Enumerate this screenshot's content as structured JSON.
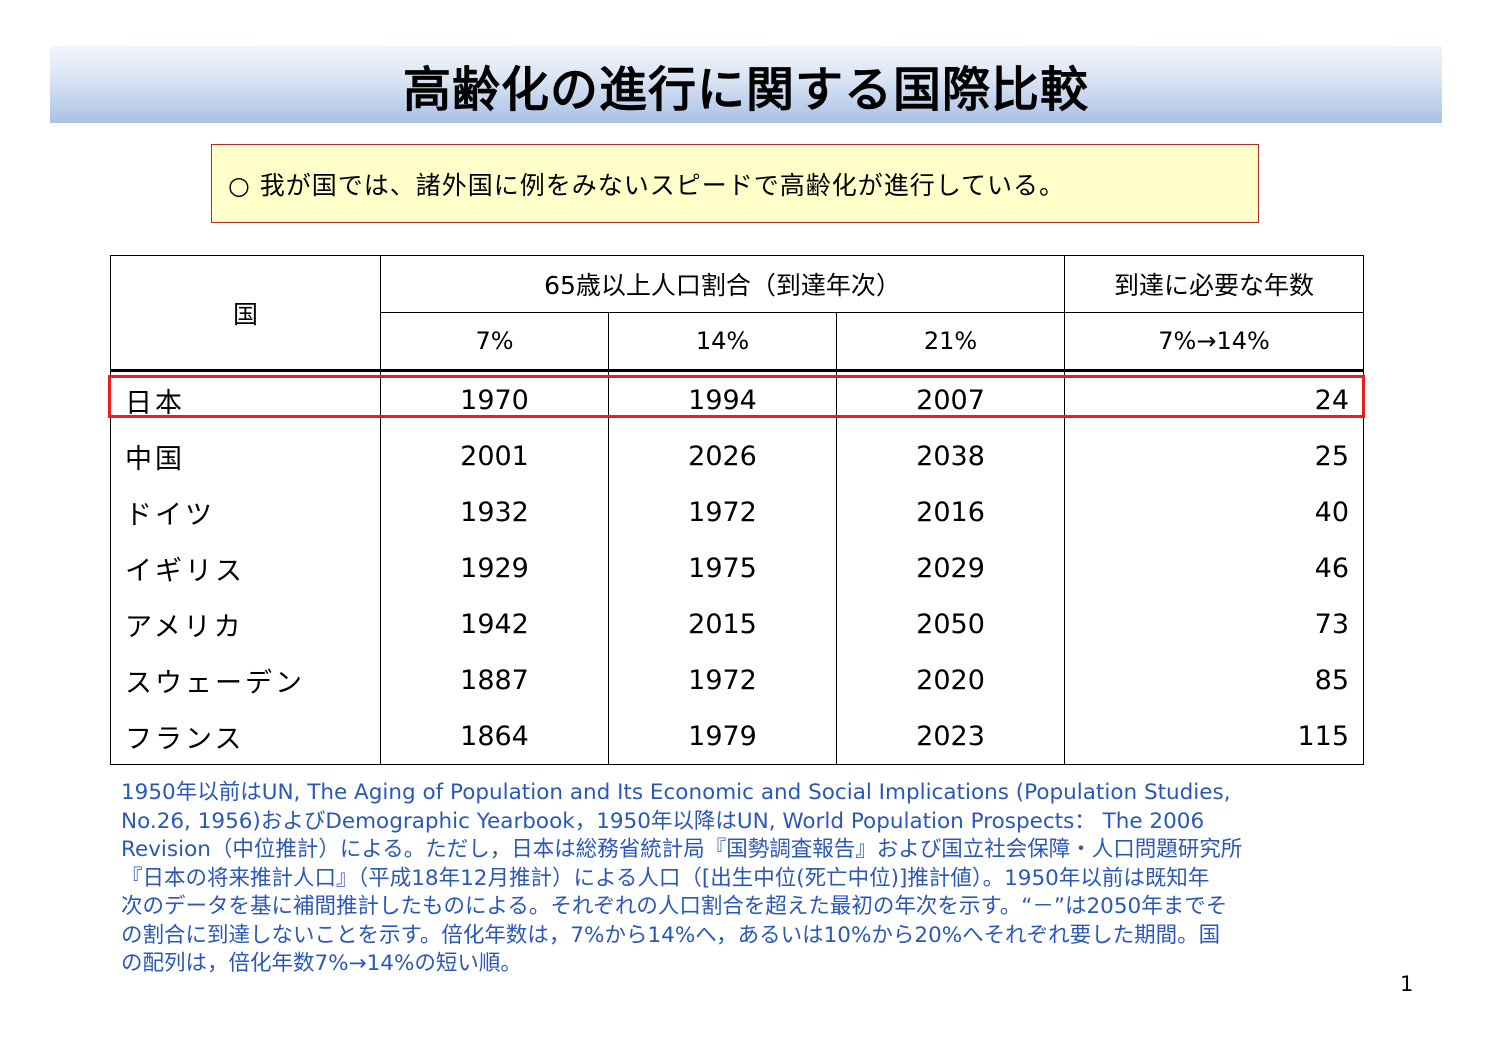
{
  "title": "高齢化の進行に関する国際比較",
  "summary": "○ 我が国では、諸外国に例をみないスピードで高齢化が進行している。",
  "table": {
    "country_header": "国",
    "group_header": "65歳以上人口割合（到達年次）",
    "years_header": "到達に必要な年数",
    "sub_headers": [
      "7%",
      "14%",
      "21%",
      "7%→14%"
    ],
    "rows": [
      {
        "country": "日本",
        "p7": "1970",
        "p14": "1994",
        "p21": "2007",
        "years": "24"
      },
      {
        "country": "中国",
        "p7": "2001",
        "p14": "2026",
        "p21": "2038",
        "years": "25"
      },
      {
        "country": "ドイツ",
        "p7": "1932",
        "p14": "1972",
        "p21": "2016",
        "years": "40"
      },
      {
        "country": "イギリス",
        "p7": "1929",
        "p14": "1975",
        "p21": "2029",
        "years": "46"
      },
      {
        "country": "アメリカ",
        "p7": "1942",
        "p14": "2015",
        "p21": "2050",
        "years": "73"
      },
      {
        "country": "スウェーデン",
        "p7": "1887",
        "p14": "1972",
        "p21": "2020",
        "years": "85"
      },
      {
        "country": "フランス",
        "p7": "1864",
        "p14": "1979",
        "p21": "2023",
        "years": "115"
      }
    ]
  },
  "note_lines": [
    "1950年以前はUN, The Aging of Population and Its Economic and Social Implications (Population Studies,",
    "No.26, 1956)およびDemographic Yearbook，1950年以降はUN, World Population Prospects： The 2006",
    "Revision（中位推計）による。ただし，日本は総務省統計局『国勢調査報告』および国立社会保障・人口問題研究所",
    "『日本の将来推計人口』（平成18年12月推計）による人口（[出生中位(死亡中位)]推計値）。1950年以前は既知年",
    "次のデータを基に補間推計したものによる。それぞれの人口割合を超えた最初の年次を示す。“－”は2050年までそ",
    "の割合に到達しないことを示す。倍化年数は，7%から14%へ，あるいは10%から20%へそれぞれ要した期間。国",
    "の配列は，倍化年数7%→14%の短い順。"
  ],
  "page_number": "1",
  "colors": {
    "note_text": "#2b58b8",
    "summary_bg": "#ffffc9",
    "summary_border": "#b02a2a",
    "highlight_border": "#ee1c1c",
    "banner_bottom": "#a9c1e6"
  }
}
